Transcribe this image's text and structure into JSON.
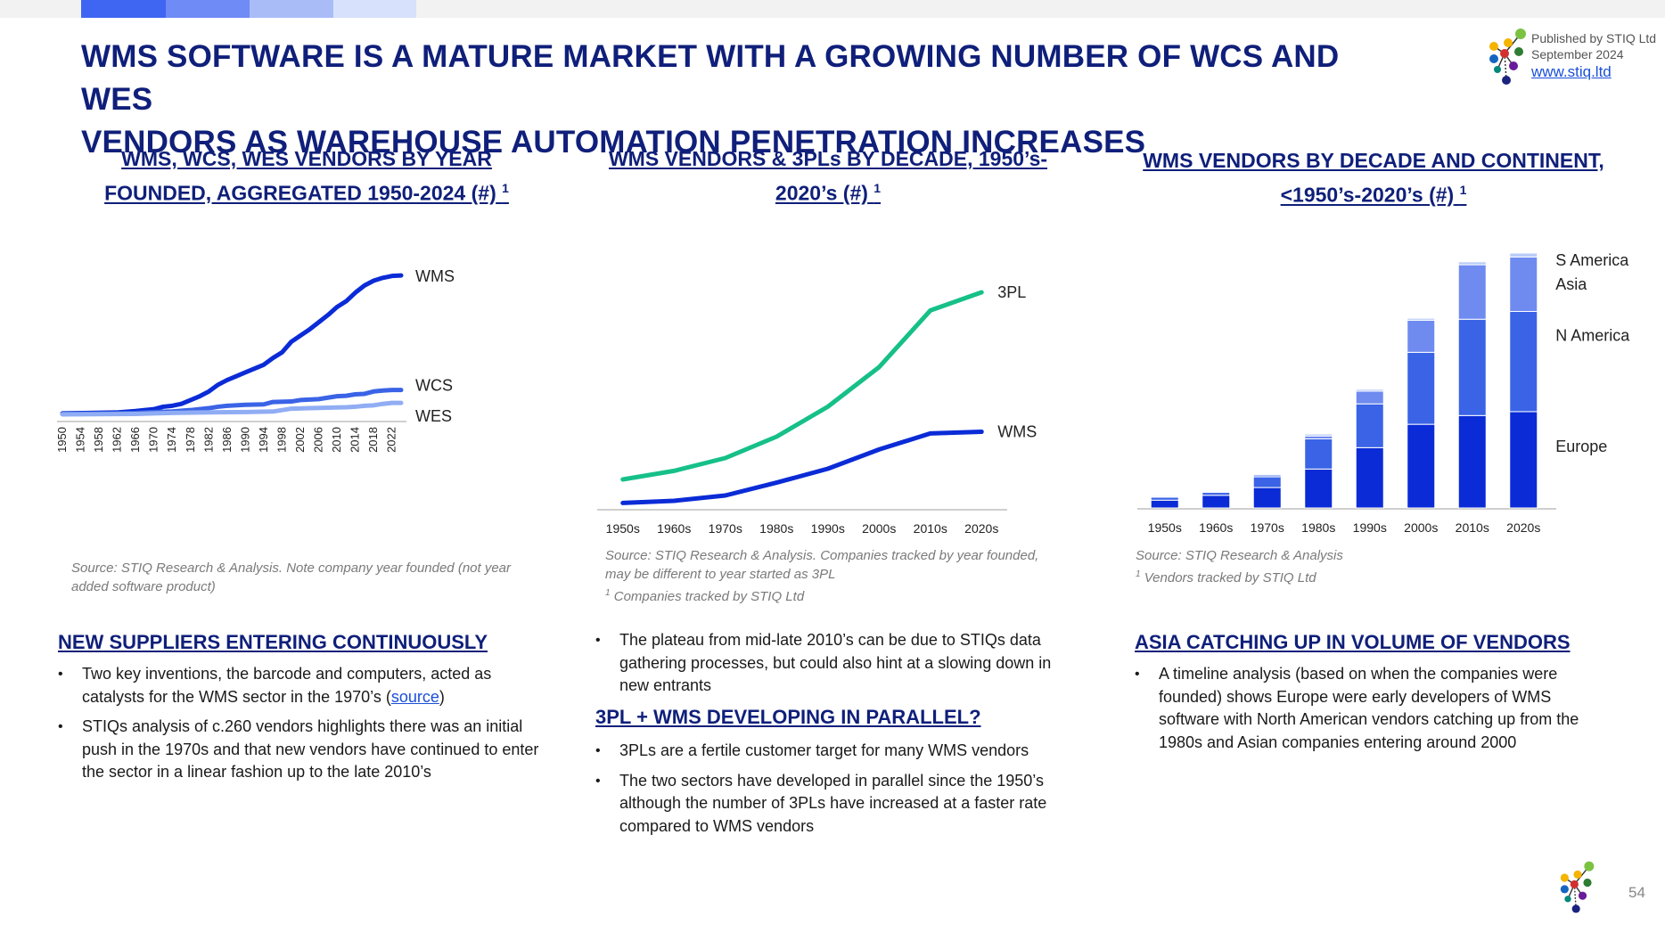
{
  "title_lines": [
    "WMS SOFTWARE IS A MATURE MARKET WITH A GROWING NUMBER OF WCS AND WES",
    "VENDORS AS WAREHOUSE AUTOMATION PENETRATION INCREASES"
  ],
  "publisher": {
    "line1": "Published by STIQ Ltd",
    "line2": "September 2024",
    "link": "www.stiq.ltd"
  },
  "colors": {
    "dark_blue": "#0A2BD6",
    "mid_blue": "#3A63E6",
    "light_blue": "#90ADF4",
    "palest_blue": "#C7D6FA",
    "green": "#16C088",
    "navy": "#0F1F7A",
    "topbar": [
      "#3F66F3",
      "#6F8BF5",
      "#A9BCF8",
      "#D7E1FB"
    ]
  },
  "chart1": {
    "title_line1": "WMS, WCS, WES VENDORS BY YEAR",
    "title_line2": "FOUNDED, AGGREGATED 1950-2024 (#)",
    "footnote_mark": "1",
    "source_line1": "Source: STIQ Research & Analysis. Note company year founded (not year",
    "source_line2": "added software product)"
  },
  "chart2": {
    "title_line1": "WMS VENDORS & 3PLs BY DECADE, 1950’s-",
    "title_line2": "2020’s (#)",
    "footnote_mark": "1",
    "source_line1": "Source: STIQ Research & Analysis. Companies tracked by year founded,",
    "source_line2": "may be different to year started as 3PL",
    "footnote_num": "1",
    "footnote_text": "Companies tracked by STIQ Ltd"
  },
  "chart3": {
    "title_line1": "WMS VENDORS BY DECADE AND CONTINENT,",
    "title_line2": "<1950’s-2020’s (#)",
    "footnote_mark": "1",
    "source_line1": "Source: STIQ Research & Analysis",
    "footnote_num": "1",
    "footnote_text": "Vendors tracked by STIQ Ltd"
  },
  "chart_data": [
    {
      "type": "line",
      "title": "WMS, WCS, WES VENDORS BY YEAR FOUNDED, AGGREGATED 1950-2024 (#)",
      "x_start": 1950,
      "x_end": 2024,
      "x_ticks": [
        "1950",
        "1954",
        "1958",
        "1962",
        "1966",
        "1970",
        "1974",
        "1978",
        "1982",
        "1986",
        "1990",
        "1994",
        "1998",
        "2002",
        "2006",
        "2010",
        "2014",
        "2018",
        "2022"
      ],
      "ylim": [
        0,
        280
      ],
      "series": [
        {
          "name": "WMS",
          "color": "#0A2BD6",
          "points": [
            [
              1950,
              2
            ],
            [
              1956,
              3
            ],
            [
              1962,
              4
            ],
            [
              1966,
              7
            ],
            [
              1970,
              11
            ],
            [
              1972,
              16
            ],
            [
              1974,
              18
            ],
            [
              1976,
              22
            ],
            [
              1978,
              30
            ],
            [
              1980,
              38
            ],
            [
              1982,
              48
            ],
            [
              1984,
              62
            ],
            [
              1986,
              72
            ],
            [
              1988,
              80
            ],
            [
              1990,
              88
            ],
            [
              1992,
              96
            ],
            [
              1994,
              104
            ],
            [
              1996,
              118
            ],
            [
              1998,
              130
            ],
            [
              2000,
              152
            ],
            [
              2002,
              165
            ],
            [
              2004,
              178
            ],
            [
              2006,
              193
            ],
            [
              2008,
              208
            ],
            [
              2010,
              225
            ],
            [
              2012,
              237
            ],
            [
              2014,
              255
            ],
            [
              2016,
              270
            ],
            [
              2018,
              280
            ],
            [
              2020,
              286
            ],
            [
              2022,
              290
            ],
            [
              2024,
              291
            ]
          ]
        },
        {
          "name": "WCS",
          "color": "#3A63E6",
          "points": [
            [
              1950,
              1
            ],
            [
              1960,
              2
            ],
            [
              1966,
              3
            ],
            [
              1970,
              5
            ],
            [
              1974,
              6
            ],
            [
              1978,
              9
            ],
            [
              1982,
              13
            ],
            [
              1984,
              16
            ],
            [
              1986,
              18
            ],
            [
              1990,
              20
            ],
            [
              1994,
              21
            ],
            [
              1996,
              26
            ],
            [
              2000,
              27
            ],
            [
              2002,
              30
            ],
            [
              2006,
              32
            ],
            [
              2008,
              35
            ],
            [
              2010,
              38
            ],
            [
              2012,
              39
            ],
            [
              2014,
              42
            ],
            [
              2016,
              43
            ],
            [
              2018,
              48
            ],
            [
              2020,
              50
            ],
            [
              2022,
              51
            ],
            [
              2024,
              51
            ]
          ]
        },
        {
          "name": "WES",
          "color": "#90ADF4",
          "points": [
            [
              1950,
              0
            ],
            [
              1966,
              1
            ],
            [
              1970,
              2
            ],
            [
              1974,
              3
            ],
            [
              1980,
              4
            ],
            [
              1990,
              5
            ],
            [
              1996,
              6
            ],
            [
              1998,
              9
            ],
            [
              2000,
              12
            ],
            [
              2004,
              13
            ],
            [
              2008,
              14
            ],
            [
              2012,
              15
            ],
            [
              2014,
              16
            ],
            [
              2016,
              18
            ],
            [
              2018,
              19
            ],
            [
              2020,
              22
            ],
            [
              2022,
              24
            ],
            [
              2024,
              24
            ]
          ]
        }
      ]
    },
    {
      "type": "line",
      "title": "WMS VENDORS & 3PLs BY DECADE, 1950’s-2020’s (#)",
      "categories": [
        "1950s",
        "1960s",
        "1970s",
        "1980s",
        "1990s",
        "2000s",
        "2010s",
        "2020s"
      ],
      "ylim": [
        0,
        1000
      ],
      "series": [
        {
          "name": "3PL",
          "color": "#16C088",
          "values": [
            125,
            165,
            225,
            325,
            465,
            650,
            915,
            1000
          ]
        },
        {
          "name": "WMS",
          "color": "#0A2BD6",
          "values": [
            15,
            25,
            50,
            110,
            175,
            265,
            340,
            348
          ]
        }
      ]
    },
    {
      "type": "bar",
      "stacked": true,
      "title": "WMS VENDORS BY DECADE AND CONTINENT, <1950’s-2020’s (#)",
      "categories": [
        "1950s",
        "1960s",
        "1970s",
        "1980s",
        "1990s",
        "2000s",
        "2010s",
        "2020s"
      ],
      "ylim": [
        0,
        262
      ],
      "series": [
        {
          "name": "Europe",
          "color": "#0A2BD6",
          "values": [
            8,
            13,
            21,
            40,
            62,
            86,
            95,
            99
          ]
        },
        {
          "name": "N America",
          "color": "#3A63E6",
          "values": [
            3,
            3,
            11,
            31,
            45,
            74,
            99,
            103
          ]
        },
        {
          "name": "Asia",
          "color": "#6F8BF0",
          "values": [
            1,
            1,
            2,
            3,
            13,
            33,
            56,
            56
          ]
        },
        {
          "name": "S America",
          "color": "#B9CBF8",
          "values": [
            1,
            1,
            1,
            2,
            2,
            2,
            3,
            4
          ]
        }
      ]
    }
  ],
  "col1": {
    "heading": "NEW SUPPLIERS ENTERING CONTINUOUSLY",
    "b1_pre": "Two key inventions, the barcode and computers, acted as catalysts for the WMS sector in the 1970’s (",
    "b1_link": "source",
    "b1_post": ")",
    "b2": "STIQs analysis of c.260 vendors highlights there was an initial push in the 1970s and that new vendors have continued to enter the sector in a linear fashion up to the late 2010’s"
  },
  "col2": {
    "b0": "The plateau from mid-late 2010’s can be due to STIQs data gathering processes, but could also hint at a slowing down in new entrants",
    "heading": "3PL + WMS DEVELOPING IN PARALLEL?",
    "b1": "3PLs are a fertile customer target for many WMS vendors",
    "b2": "The two sectors have developed in parallel since the 1950’s although the number of 3PLs have increased at a faster rate compared to WMS vendors"
  },
  "col3": {
    "heading": "ASIA CATCHING UP IN VOLUME OF VENDORS",
    "b1": "A timeline analysis (based on when the companies were founded) shows Europe were early developers of WMS software with North American vendors catching up from the 1980s and Asian companies entering around 2000"
  },
  "page_number": "54"
}
